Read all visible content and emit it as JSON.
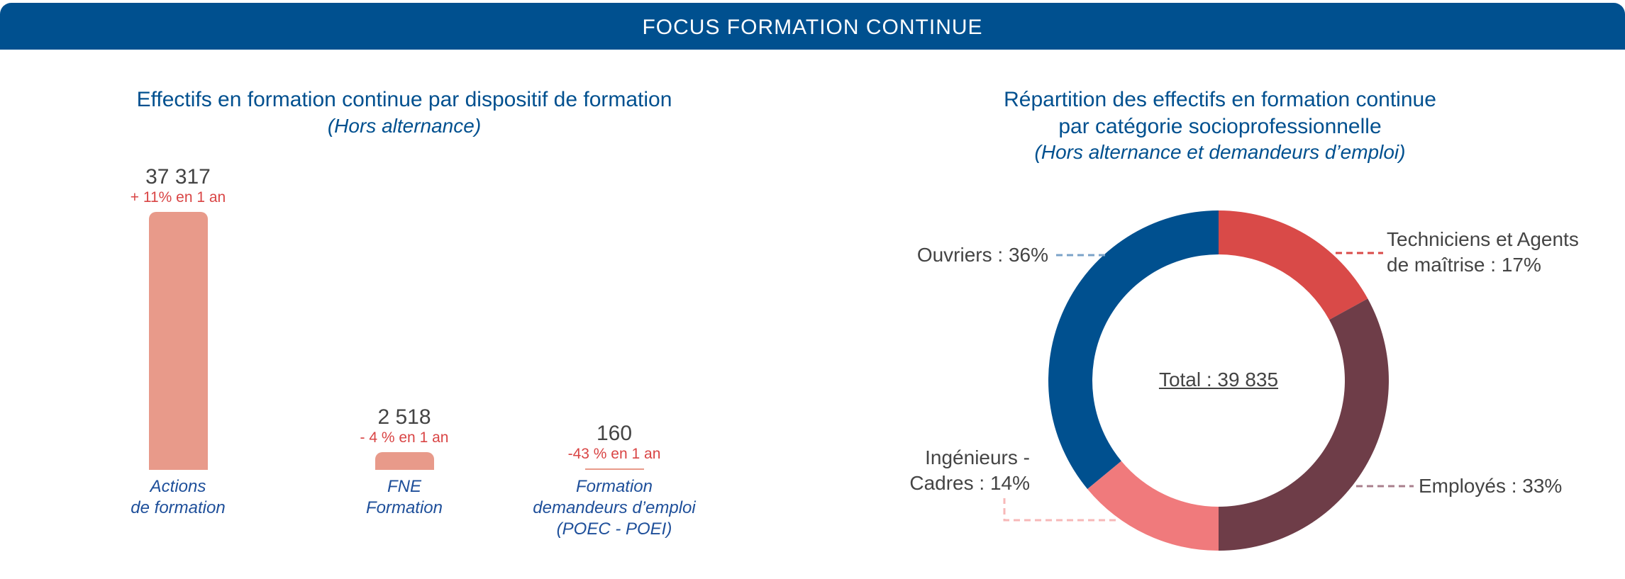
{
  "header": {
    "title": "FOCUS FORMATION CONTINUE"
  },
  "chart_data": [
    {
      "type": "bar",
      "title": "Effectifs en formation continue par dispositif de formation",
      "subtitle": "(Hors alternance)",
      "categories": [
        [
          "Actions",
          "de formation"
        ],
        [
          "FNE",
          "Formation"
        ],
        [
          "Formation",
          "demandeurs d’emploi",
          "(POEC - POEI)"
        ]
      ],
      "values": [
        37317,
        2518,
        160
      ],
      "value_labels": [
        "37 317",
        "2 518",
        "160"
      ],
      "change_labels": [
        "+ 11% en 1 an",
        "- 4 % en 1 an",
        "-43 % en 1 an"
      ],
      "bar_color": "#e89a8a"
    },
    {
      "type": "pie",
      "title": "Répartition des effectifs en formation continue",
      "title_line2": "par catégorie socioprofessionnelle",
      "subtitle": "(Hors alternance et demandeurs d’emploi)",
      "center_label": "Total : 39 835",
      "slices": [
        {
          "label_lines": [
            "Techniciens et Agents",
            "de maîtrise : 17%"
          ],
          "value": 17,
          "color": "#d94a48"
        },
        {
          "label_lines": [
            "Employés : 33%"
          ],
          "value": 33,
          "color": "#6e3d48"
        },
        {
          "label_lines": [
            "Ingénieurs -",
            "Cadres : 14%"
          ],
          "value": 14,
          "color": "#f07a7c"
        },
        {
          "label_lines": [
            "Ouvriers : 36%"
          ],
          "value": 36,
          "color": "#00508f"
        }
      ]
    }
  ]
}
